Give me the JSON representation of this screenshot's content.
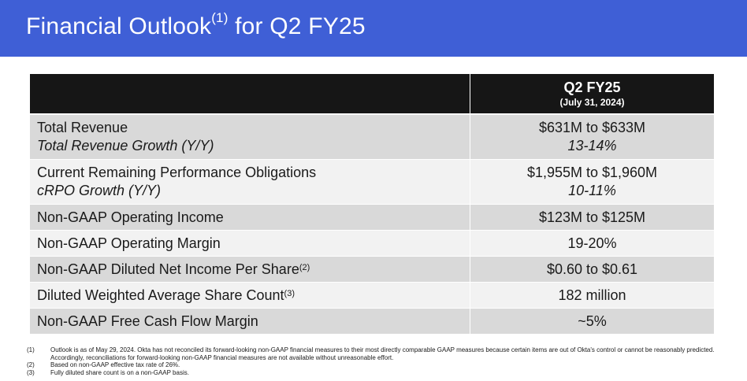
{
  "header": {
    "title_pre": "Financial Outlook",
    "title_sup": "(1)",
    "title_post": " for Q2 FY25"
  },
  "table": {
    "column_title": "Q2 FY25",
    "column_date": "(July 31, 2024)",
    "rows": [
      {
        "label": "Total Revenue",
        "sub_label": "Total Revenue Growth (Y/Y)",
        "value": "$631M to $633M",
        "sub_value": "13-14%"
      },
      {
        "label": "Current Remaining Performance Obligations",
        "sub_label": "cRPO Growth (Y/Y)",
        "value": "$1,955M to $1,960M",
        "sub_value": "10-11%"
      },
      {
        "label": "Non-GAAP Operating Income",
        "value": "$123M to $125M"
      },
      {
        "label": "Non-GAAP Operating Margin",
        "value": "19-20%"
      },
      {
        "label": "Non-GAAP Diluted Net Income Per Share",
        "label_sup": "(2)",
        "value": "$0.60 to $0.61"
      },
      {
        "label": "Diluted Weighted Average Share Count",
        "label_sup": "(3)",
        "value": "182 million"
      },
      {
        "label": "Non-GAAP Free Cash Flow Margin",
        "value": "~5%"
      }
    ]
  },
  "footnotes": [
    {
      "num": "(1)",
      "text": "Outlook is as of May 29, 2024. Okta has not reconciled its forward-looking non-GAAP financial measures to their most directly comparable GAAP measures because certain items are out of Okta's control or cannot be reasonably predicted. Accordingly, reconciliations for forward-looking non-GAAP financial measures are not available without unreasonable effort."
    },
    {
      "num": "(2)",
      "text": "Based on non-GAAP effective tax rate of 26%."
    },
    {
      "num": "(3)",
      "text": "Fully diluted share count is on a non-GAAP basis."
    }
  ],
  "colors": {
    "banner": "#3f5fd6",
    "table_header": "#161616",
    "row_dark": "#d9d9d9",
    "row_light": "#f2f2f2"
  }
}
